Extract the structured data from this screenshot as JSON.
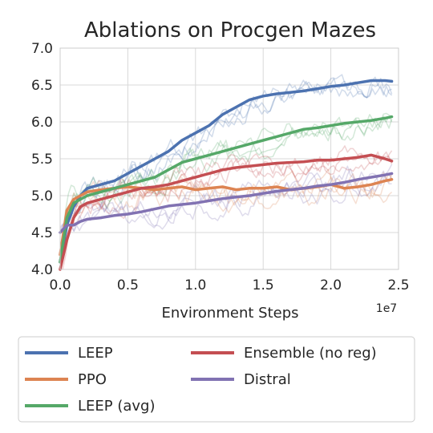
{
  "chart_data": {
    "type": "line",
    "title": "Ablations on Procgen Mazes",
    "xlabel": "Environment Steps",
    "ylabel": "",
    "x_exponent_label": "1e7",
    "xlim": [
      0,
      2.5
    ],
    "ylim": [
      4.0,
      7.0
    ],
    "xticks": [
      "0.0",
      "0.5",
      "1.0",
      "1.5",
      "2.0",
      "2.5"
    ],
    "yticks": [
      "4.0",
      "4.5",
      "5.0",
      "5.5",
      "6.0",
      "6.5",
      "7.0"
    ],
    "grid": true,
    "legend_position": "bottom",
    "series": [
      {
        "name": "LEEP",
        "color": "#4c72b0",
        "x": [
          0.0,
          0.05,
          0.1,
          0.15,
          0.2,
          0.3,
          0.4,
          0.5,
          0.6,
          0.7,
          0.8,
          0.9,
          1.0,
          1.1,
          1.2,
          1.3,
          1.4,
          1.5,
          1.6,
          1.7,
          1.8,
          1.9,
          2.0,
          2.1,
          2.2,
          2.3,
          2.4,
          2.45
        ],
        "values": [
          4.1,
          4.6,
          4.85,
          5.0,
          5.1,
          5.15,
          5.2,
          5.3,
          5.4,
          5.5,
          5.6,
          5.75,
          5.85,
          5.95,
          6.1,
          6.2,
          6.3,
          6.35,
          6.38,
          6.4,
          6.42,
          6.45,
          6.48,
          6.5,
          6.53,
          6.56,
          6.56,
          6.55
        ]
      },
      {
        "name": "PPO",
        "color": "#dd8452",
        "x": [
          0.0,
          0.05,
          0.1,
          0.15,
          0.2,
          0.3,
          0.4,
          0.5,
          0.6,
          0.7,
          0.8,
          0.9,
          1.0,
          1.1,
          1.2,
          1.3,
          1.4,
          1.5,
          1.6,
          1.7,
          1.8,
          1.9,
          2.0,
          2.1,
          2.2,
          2.3,
          2.4,
          2.45
        ],
        "values": [
          4.2,
          4.8,
          4.95,
          5.0,
          5.05,
          5.08,
          5.1,
          5.12,
          5.1,
          5.08,
          5.1,
          5.12,
          5.08,
          5.1,
          5.12,
          5.08,
          5.1,
          5.1,
          5.12,
          5.08,
          5.1,
          5.12,
          5.15,
          5.1,
          5.12,
          5.15,
          5.2,
          5.22
        ]
      },
      {
        "name": "LEEP (avg)",
        "color": "#55a868",
        "x": [
          0.0,
          0.05,
          0.1,
          0.15,
          0.2,
          0.3,
          0.4,
          0.5,
          0.6,
          0.7,
          0.8,
          0.9,
          1.0,
          1.1,
          1.2,
          1.3,
          1.4,
          1.5,
          1.6,
          1.7,
          1.8,
          1.9,
          2.0,
          2.1,
          2.2,
          2.3,
          2.4,
          2.45
        ],
        "values": [
          4.1,
          4.7,
          4.9,
          4.95,
          5.0,
          5.05,
          5.1,
          5.15,
          5.2,
          5.25,
          5.35,
          5.45,
          5.5,
          5.55,
          5.6,
          5.65,
          5.7,
          5.75,
          5.8,
          5.85,
          5.9,
          5.92,
          5.95,
          5.98,
          6.0,
          6.02,
          6.05,
          6.07
        ]
      },
      {
        "name": "Ensemble (no reg)",
        "color": "#c44e52",
        "x": [
          0.0,
          0.05,
          0.1,
          0.15,
          0.2,
          0.3,
          0.4,
          0.5,
          0.6,
          0.7,
          0.8,
          0.9,
          1.0,
          1.1,
          1.2,
          1.3,
          1.4,
          1.5,
          1.6,
          1.7,
          1.8,
          1.9,
          2.0,
          2.1,
          2.2,
          2.3,
          2.4,
          2.45
        ],
        "values": [
          4.0,
          4.4,
          4.7,
          4.85,
          4.9,
          4.95,
          5.0,
          5.05,
          5.1,
          5.12,
          5.15,
          5.2,
          5.25,
          5.3,
          5.35,
          5.38,
          5.4,
          5.42,
          5.44,
          5.45,
          5.46,
          5.48,
          5.48,
          5.5,
          5.52,
          5.55,
          5.5,
          5.47
        ]
      },
      {
        "name": "Distral",
        "color": "#8172b2",
        "x": [
          0.0,
          0.05,
          0.1,
          0.15,
          0.2,
          0.3,
          0.4,
          0.5,
          0.6,
          0.7,
          0.8,
          0.9,
          1.0,
          1.1,
          1.2,
          1.3,
          1.4,
          1.5,
          1.6,
          1.7,
          1.8,
          1.9,
          2.0,
          2.1,
          2.2,
          2.3,
          2.4,
          2.45
        ],
        "values": [
          4.5,
          4.6,
          4.6,
          4.65,
          4.68,
          4.7,
          4.73,
          4.75,
          4.78,
          4.82,
          4.86,
          4.88,
          4.9,
          4.93,
          4.96,
          4.98,
          5.0,
          5.03,
          5.06,
          5.08,
          5.1,
          5.13,
          5.15,
          5.18,
          5.22,
          5.25,
          5.28,
          5.3
        ]
      }
    ]
  }
}
